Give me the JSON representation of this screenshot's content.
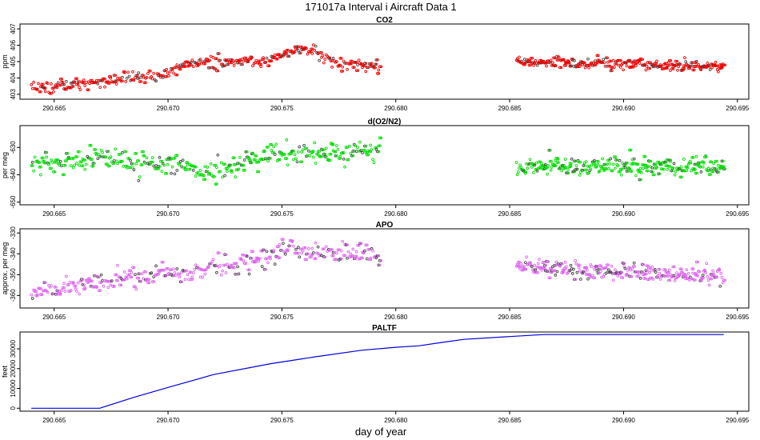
{
  "figure": {
    "title": "171017a   Interval i Aircraft Data 1",
    "xlabel": "day of year"
  },
  "chart_data": [
    {
      "type": "scatter",
      "title": "CO2",
      "ylabel": "ppm",
      "color": "#ee0000",
      "xlim": [
        290.6635,
        290.6955
      ],
      "ylim": [
        402.7,
        407.3
      ],
      "yticks": [
        403,
        404,
        405,
        406,
        407
      ],
      "xticks": [
        290.665,
        290.67,
        290.675,
        290.68,
        290.685,
        290.69,
        290.695
      ],
      "xtick_labels": [
        "290.665",
        "290.670",
        "290.675",
        "290.680",
        "290.685",
        "290.690",
        "290.695"
      ],
      "segments": [
        {
          "x_start": 290.664,
          "x_end": 290.6793,
          "trend_x": [
            290.664,
            290.667,
            290.67,
            290.671,
            290.6745,
            290.6755,
            290.6765,
            290.677,
            290.6793
          ],
          "trend_y": [
            403.4,
            403.7,
            404.2,
            404.9,
            405.1,
            405.8,
            405.6,
            405.0,
            404.7
          ],
          "noise": 0.35,
          "n": 300
        },
        {
          "x_start": 290.6853,
          "x_end": 290.6944,
          "trend_x": [
            290.6853,
            290.6944
          ],
          "trend_y": [
            405.0,
            404.7
          ],
          "noise": 0.3,
          "n": 230
        }
      ]
    },
    {
      "type": "scatter",
      "title": "d(O2/N2)",
      "ylabel": "per meg",
      "color": "#00dd00",
      "xlim": [
        290.6635,
        290.6955
      ],
      "ylim": [
        -651,
        -622
      ],
      "yticks": [
        -650,
        -640,
        -630
      ],
      "yticklabels": [
        "-650",
        "-640",
        "-630"
      ],
      "xticks": [
        290.665,
        290.67,
        290.675,
        290.68,
        290.685,
        290.69,
        290.695
      ],
      "xtick_labels": [
        "290.665",
        "290.670",
        "290.675",
        "290.680",
        "290.685",
        "290.690",
        "290.695"
      ],
      "segments": [
        {
          "x_start": 290.664,
          "x_end": 290.6793,
          "trend_x": [
            290.664,
            290.667,
            290.67,
            290.672,
            290.6745,
            290.6793
          ],
          "trend_y": [
            -637,
            -634,
            -637,
            -639,
            -633,
            -631
          ],
          "noise": 3.6,
          "n": 300
        },
        {
          "x_start": 290.6853,
          "x_end": 290.6944,
          "trend_x": [
            290.6853,
            290.6944
          ],
          "trend_y": [
            -637,
            -637
          ],
          "noise": 3.2,
          "n": 230
        }
      ]
    },
    {
      "type": "scatter",
      "title": "APO",
      "ylabel": "approx. per meg",
      "color": "#dd66ee",
      "xlim": [
        290.6635,
        290.6955
      ],
      "ylim": [
        -366,
        -328
      ],
      "yticks": [
        -360,
        -350,
        -340,
        -330
      ],
      "yticklabels": [
        "-360",
        "-350",
        "-340",
        "-330"
      ],
      "xticks": [
        290.665,
        290.67,
        290.675,
        290.68,
        290.685,
        290.69,
        290.695
      ],
      "xtick_labels": [
        "290.665",
        "290.670",
        "290.675",
        "290.680",
        "290.685",
        "290.690",
        "290.695"
      ],
      "segments": [
        {
          "x_start": 290.664,
          "x_end": 290.6793,
          "trend_x": [
            290.664,
            290.667,
            290.67,
            290.673,
            290.675,
            290.6793
          ],
          "trend_y": [
            -358,
            -354,
            -349,
            -346,
            -338,
            -341
          ],
          "noise": 4.2,
          "n": 300
        },
        {
          "x_start": 290.6853,
          "x_end": 290.6944,
          "trend_x": [
            290.6853,
            290.6944
          ],
          "trend_y": [
            -346,
            -351
          ],
          "noise": 3.8,
          "n": 230
        }
      ]
    },
    {
      "type": "line",
      "title": "PALTF",
      "ylabel": "feet",
      "color": "#0000dd",
      "xlim": [
        290.6635,
        290.6955
      ],
      "ylim": [
        -1500,
        38500
      ],
      "yticks": [
        0,
        10000,
        20000,
        30000
      ],
      "yticklabels": [
        "0",
        "10000",
        "20000",
        "30000"
      ],
      "xticks": [
        290.665,
        290.67,
        290.675,
        290.68,
        290.685,
        290.69,
        290.695
      ],
      "xtick_labels": [
        "290.665",
        "290.670",
        "290.675",
        "290.680",
        "290.685",
        "290.690",
        "290.695"
      ],
      "x": [
        290.664,
        290.667,
        290.6685,
        290.67,
        290.672,
        290.6745,
        290.6765,
        290.6785,
        290.68,
        290.681,
        290.682,
        290.683,
        290.685,
        290.6865,
        290.688,
        290.6944
      ],
      "y": [
        0,
        0,
        5500,
        10500,
        17000,
        22500,
        26000,
        29300,
        30800,
        31500,
        33200,
        34800,
        36200,
        37200,
        37200,
        37200
      ]
    }
  ]
}
